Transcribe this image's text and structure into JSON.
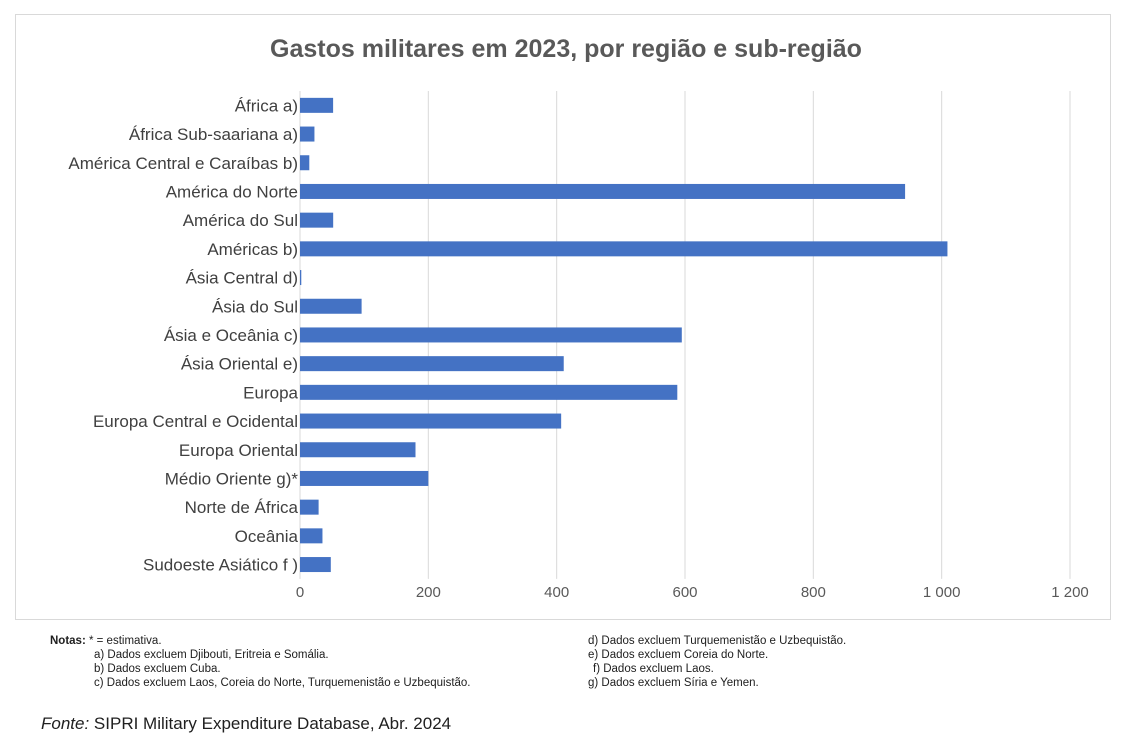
{
  "chart_data": {
    "type": "bar",
    "orientation": "horizontal",
    "title": "Gastos militares em 2023, por região e sub-região",
    "categories": [
      "África a)",
      "África Sub-saariana a)",
      "América Central e Caraíbas b)",
      "América do Norte",
      "América do Sul",
      "Américas b)",
      "Ásia Central d)",
      "Ásia do Sul",
      "Ásia e Oceânia c)",
      "Ásia Oriental e)",
      "Europa",
      "Europa Central e Ocidental",
      "Europa Oriental",
      "Médio Oriente g)*",
      "Norte de África",
      "Oceânia",
      "Sudoeste Asiático f )"
    ],
    "values": [
      51.6,
      22.5,
      14.5,
      943,
      51.7,
      1009,
      2,
      96,
      595,
      411,
      588,
      407,
      180,
      200,
      29,
      35,
      48
    ],
    "xlim": [
      0,
      1200
    ],
    "xticks": [
      0,
      200,
      400,
      600,
      800,
      1000,
      1200
    ],
    "xtick_labels": [
      "0",
      "200",
      "400",
      "600",
      "800",
      "1 000",
      "1 200"
    ],
    "grid": true,
    "bar_color": "#4472c4"
  },
  "notes": {
    "label": "Notas:",
    "first": " * = estimativa.",
    "left": [
      "a) Dados excluem Djibouti, Eritreia e Somália.",
      "b) Dados excluem Cuba.",
      "c) Dados excluem Laos, Coreia do Norte, Turquemenistão e Uzbequistão."
    ],
    "right": [
      "d) Dados excluem Turquemenistão e Uzbequistão.",
      "e) Dados excluem Coreia do Norte.",
      "f) Dados excluem Laos.",
      "g) Dados excluem Síria e Yemen."
    ]
  },
  "source": {
    "prefix": "Fonte:",
    "text": " SIPRI Military Expenditure Database, Abr. 2024"
  }
}
